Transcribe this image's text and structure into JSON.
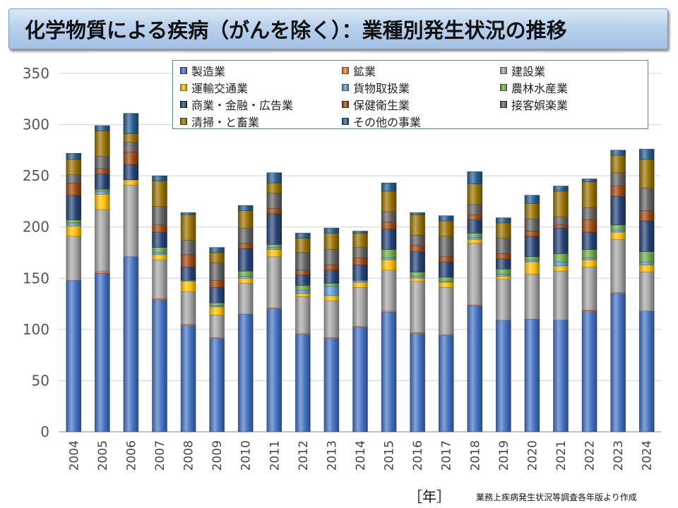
{
  "chart_data": {
    "type": "bar",
    "stacked": true,
    "title": "化学物質による疾病（がんを除く）：業種別発生状況の推移",
    "xlabel": "［年］",
    "ylabel": "",
    "ylim": [
      0,
      350
    ],
    "yticks": [
      0,
      50,
      100,
      150,
      200,
      250,
      300,
      350
    ],
    "grid": true,
    "legend_position": "top",
    "source_note": "業務上疾病発生状況等調査各年版より作成",
    "categories": [
      "2004",
      "2005",
      "2006",
      "2007",
      "2008",
      "2009",
      "2010",
      "2011",
      "2012",
      "2013",
      "2014",
      "2015",
      "2016",
      "2017",
      "2018",
      "2019",
      "2020",
      "2021",
      "2022",
      "2023",
      "2024"
    ],
    "series": [
      {
        "name": "製造業",
        "color": "#4472c4",
        "values": [
          148,
          155,
          171,
          129,
          104,
          91,
          115,
          120,
          95,
          91,
          102,
          117,
          96,
          94,
          123,
          109,
          110,
          109,
          118,
          135,
          118
        ]
      },
      {
        "name": "鉱業",
        "color": "#ed7d31",
        "values": [
          0,
          2,
          0,
          1,
          1,
          1,
          0,
          1,
          1,
          1,
          1,
          1,
          1,
          1,
          1,
          0,
          0,
          0,
          1,
          1,
          0
        ]
      },
      {
        "name": "建設業",
        "color": "#a5a5a5",
        "values": [
          43,
          60,
          70,
          38,
          32,
          22,
          30,
          50,
          36,
          36,
          38,
          40,
          50,
          46,
          60,
          40,
          44,
          48,
          42,
          52,
          38
        ]
      },
      {
        "name": "運輸交通業",
        "color": "#ffc000",
        "values": [
          10,
          15,
          5,
          5,
          10,
          8,
          5,
          7,
          3,
          5,
          5,
          10,
          3,
          5,
          4,
          3,
          12,
          5,
          7,
          7,
          7
        ]
      },
      {
        "name": "貨物取扱業",
        "color": "#5b9bd5",
        "values": [
          3,
          3,
          0,
          2,
          0,
          1,
          2,
          2,
          3,
          9,
          2,
          2,
          2,
          1,
          2,
          2,
          2,
          4,
          2,
          2,
          3
        ]
      },
      {
        "name": "農林水産業",
        "color": "#70ad47",
        "values": [
          3,
          2,
          0,
          5,
          1,
          3,
          5,
          3,
          5,
          3,
          0,
          8,
          4,
          4,
          4,
          5,
          3,
          8,
          8,
          5,
          10
        ]
      },
      {
        "name": "商業・金融・広告業",
        "color": "#264478",
        "values": [
          24,
          15,
          15,
          15,
          13,
          15,
          22,
          30,
          10,
          13,
          15,
          20,
          20,
          15,
          13,
          10,
          20,
          25,
          17,
          28,
          30
        ]
      },
      {
        "name": "保健衛生業",
        "color": "#9e480e",
        "values": [
          12,
          5,
          12,
          7,
          12,
          7,
          5,
          5,
          5,
          5,
          7,
          7,
          6,
          5,
          5,
          5,
          5,
          3,
          12,
          10,
          10
        ]
      },
      {
        "name": "接客娯楽業",
        "color": "#636363",
        "values": [
          8,
          12,
          10,
          18,
          14,
          17,
          15,
          15,
          17,
          15,
          10,
          10,
          10,
          20,
          10,
          15,
          12,
          8,
          12,
          13,
          22
        ]
      },
      {
        "name": "清掃・と畜業",
        "color": "#997300",
        "values": [
          15,
          25,
          8,
          25,
          25,
          10,
          17,
          10,
          14,
          16,
          14,
          20,
          20,
          15,
          20,
          15,
          15,
          25,
          25,
          17,
          28
        ]
      },
      {
        "name": "その他の事業",
        "color": "#255e91",
        "values": [
          6,
          5,
          20,
          5,
          2,
          5,
          5,
          10,
          5,
          5,
          2,
          8,
          2,
          5,
          12,
          5,
          8,
          5,
          3,
          5,
          10
        ]
      }
    ]
  },
  "legend": {
    "items": [
      "製造業",
      "鉱業",
      "建設業",
      "運輸交通業",
      "貨物取扱業",
      "農林水産業",
      "商業・金融・広告業",
      "保健衛生業",
      "接客娯楽業",
      "清掃・と畜業",
      "その他の事業"
    ]
  }
}
